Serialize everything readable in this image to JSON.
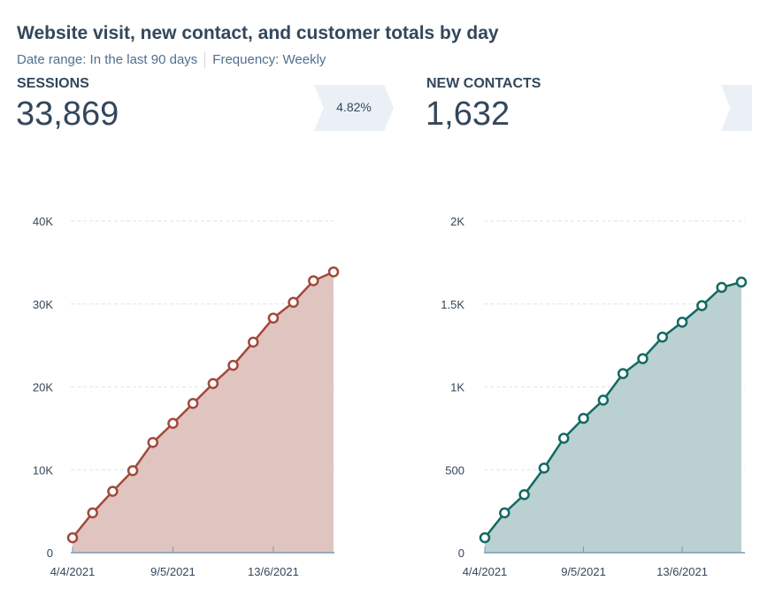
{
  "title": "Website visit, new contact, and customer totals by day",
  "filters": {
    "date_range": "Date range: In the last 90 days",
    "frequency": "Frequency: Weekly"
  },
  "kpis": [
    {
      "label": "SESSIONS",
      "value": "33,869"
    },
    {
      "label": "NEW CONTACTS",
      "value": "1,632"
    }
  ],
  "conversion_rate": "4.82%",
  "chart_data": [
    {
      "type": "area",
      "name": "SESSIONS",
      "color": "#a2493a",
      "fill": "#e0c4c0",
      "x": [
        "4/4/2021",
        "11/4/2021",
        "18/4/2021",
        "25/4/2021",
        "2/5/2021",
        "9/5/2021",
        "16/5/2021",
        "23/5/2021",
        "30/5/2021",
        "6/6/2021",
        "13/6/2021",
        "20/6/2021",
        "27/6/2021",
        "4/7/2021"
      ],
      "values": [
        1800,
        4800,
        7400,
        9900,
        13300,
        15600,
        18000,
        20400,
        22600,
        25400,
        28300,
        30200,
        32800,
        33869
      ],
      "ylim": [
        0,
        40000
      ],
      "yticks": [
        0,
        10000,
        20000,
        30000,
        40000
      ],
      "ytick_labels": [
        "0",
        "10K",
        "20K",
        "30K",
        "40K"
      ],
      "xtick_labels": [
        "4/4/2021",
        "9/5/2021",
        "13/6/2021"
      ],
      "xtick_index": [
        0,
        5,
        10
      ],
      "grid": true
    },
    {
      "type": "area",
      "name": "NEW CONTACTS",
      "color": "#116a62",
      "fill": "#bad0d1",
      "x": [
        "4/4/2021",
        "11/4/2021",
        "18/4/2021",
        "25/4/2021",
        "2/5/2021",
        "9/5/2021",
        "16/5/2021",
        "23/5/2021",
        "30/5/2021",
        "6/6/2021",
        "13/6/2021",
        "20/6/2021",
        "27/6/2021",
        "4/7/2021"
      ],
      "values": [
        90,
        240,
        350,
        510,
        690,
        810,
        920,
        1080,
        1170,
        1300,
        1390,
        1490,
        1600,
        1632
      ],
      "ylim": [
        0,
        2000
      ],
      "yticks": [
        0,
        500,
        1000,
        1500,
        2000
      ],
      "ytick_labels": [
        "0",
        "500",
        "1K",
        "1.5K",
        "2K"
      ],
      "xtick_labels": [
        "4/4/2021",
        "9/5/2021",
        "13/6/2021"
      ],
      "xtick_index": [
        0,
        5,
        10
      ],
      "grid": true
    }
  ]
}
